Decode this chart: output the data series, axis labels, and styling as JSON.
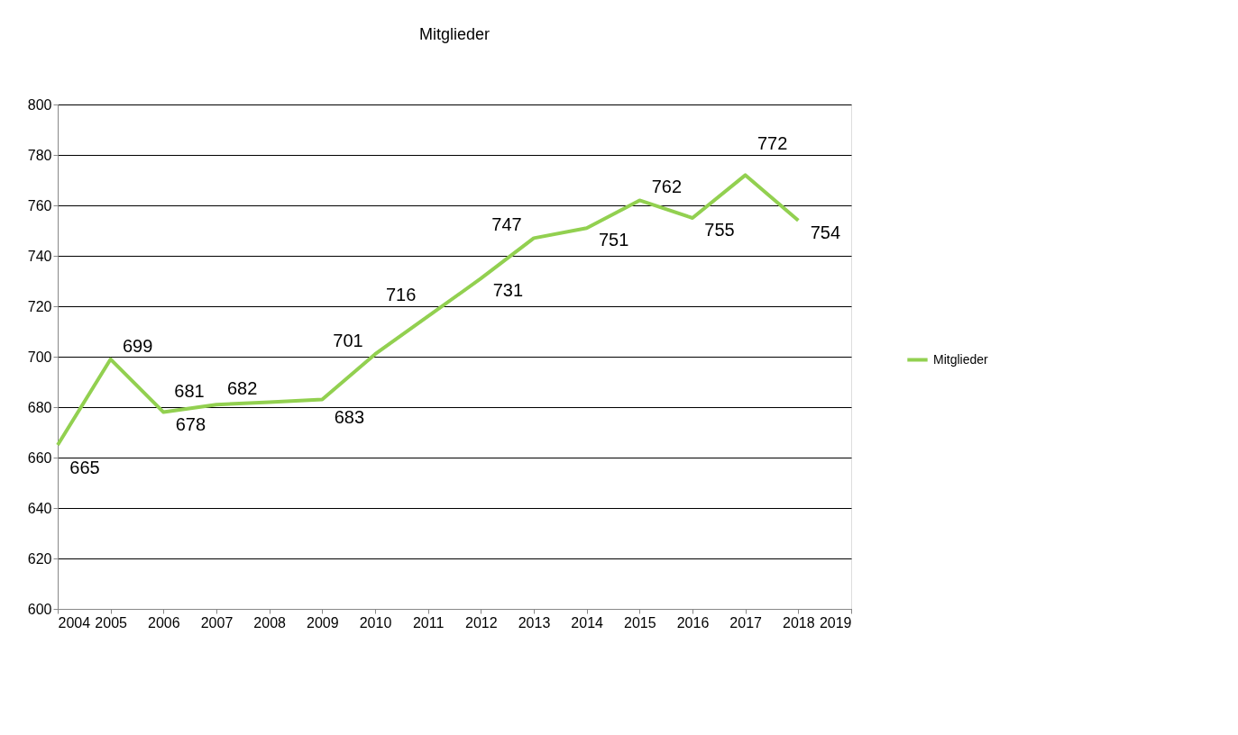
{
  "chart_data": {
    "type": "line",
    "title": "Mitglieder",
    "x": [
      2004,
      2005,
      2006,
      2007,
      2008,
      2009,
      2010,
      2011,
      2012,
      2013,
      2014,
      2015,
      2016,
      2017,
      2018
    ],
    "series": [
      {
        "name": "Mitglieder",
        "color": "#92d050",
        "values": [
          665,
          699,
          678,
          681,
          682,
          683,
          701,
          716,
          731,
          747,
          751,
          762,
          755,
          772,
          754
        ]
      }
    ],
    "xlim": [
      2004,
      2019
    ],
    "xticks": [
      2004,
      2005,
      2006,
      2007,
      2008,
      2009,
      2010,
      2011,
      2012,
      2013,
      2014,
      2015,
      2016,
      2017,
      2018,
      2019
    ],
    "ylim": [
      600,
      800
    ],
    "yticks": [
      600,
      620,
      640,
      660,
      680,
      700,
      720,
      740,
      760,
      780,
      800
    ],
    "grid": "y",
    "legend": "right",
    "data_labels": true,
    "marker": "none",
    "line_style": "solid"
  }
}
